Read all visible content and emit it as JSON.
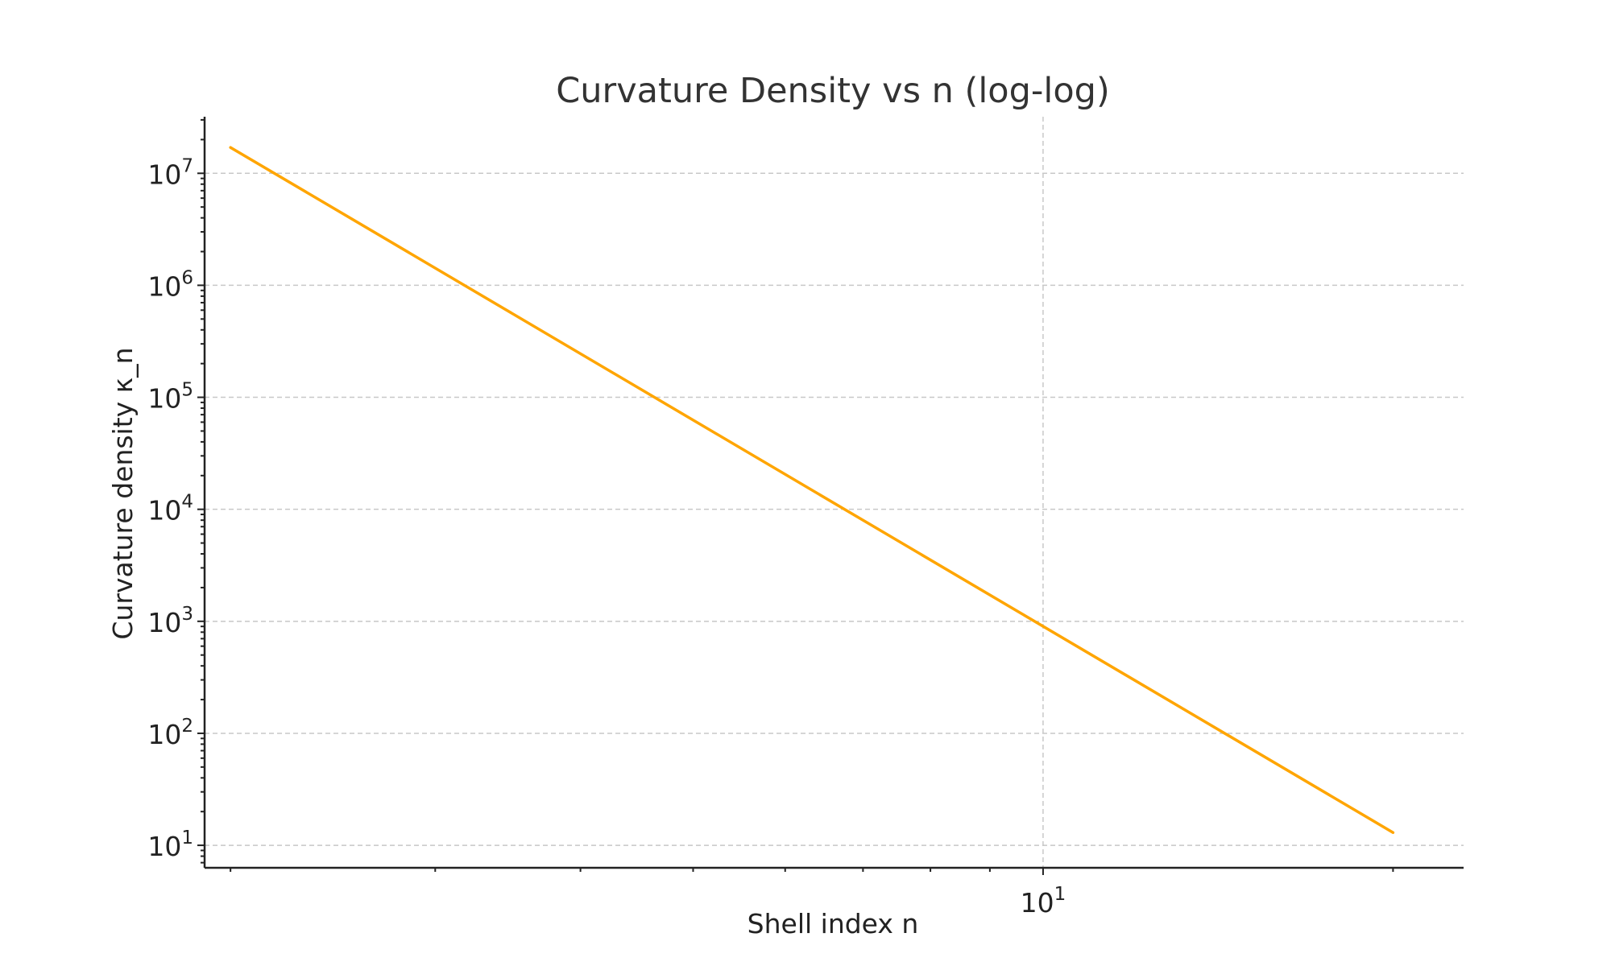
{
  "chart_data": {
    "type": "line",
    "title": "Curvature Density vs n (log-log)",
    "xlabel": "Shell index n",
    "ylabel": "Curvature density κ_n",
    "xscale": "log",
    "yscale": "log",
    "xlim": [
      1.9,
      23
    ],
    "ylim": [
      6.3,
      32000000.0
    ],
    "grid": true,
    "x_ticks": [
      {
        "value": 10,
        "base": "10",
        "exp": "1"
      }
    ],
    "y_ticks": [
      {
        "value": 10,
        "base": "10",
        "exp": "1"
      },
      {
        "value": 100,
        "base": "10",
        "exp": "2"
      },
      {
        "value": 1000,
        "base": "10",
        "exp": "3"
      },
      {
        "value": 10000,
        "base": "10",
        "exp": "4"
      },
      {
        "value": 100000,
        "base": "10",
        "exp": "5"
      },
      {
        "value": 1000000,
        "base": "10",
        "exp": "6"
      },
      {
        "value": 10000000,
        "base": "10",
        "exp": "7"
      }
    ],
    "series": [
      {
        "color": "#FFA500",
        "x": [
          2,
          20
        ],
        "y": [
          17000000,
          13
        ]
      }
    ]
  }
}
